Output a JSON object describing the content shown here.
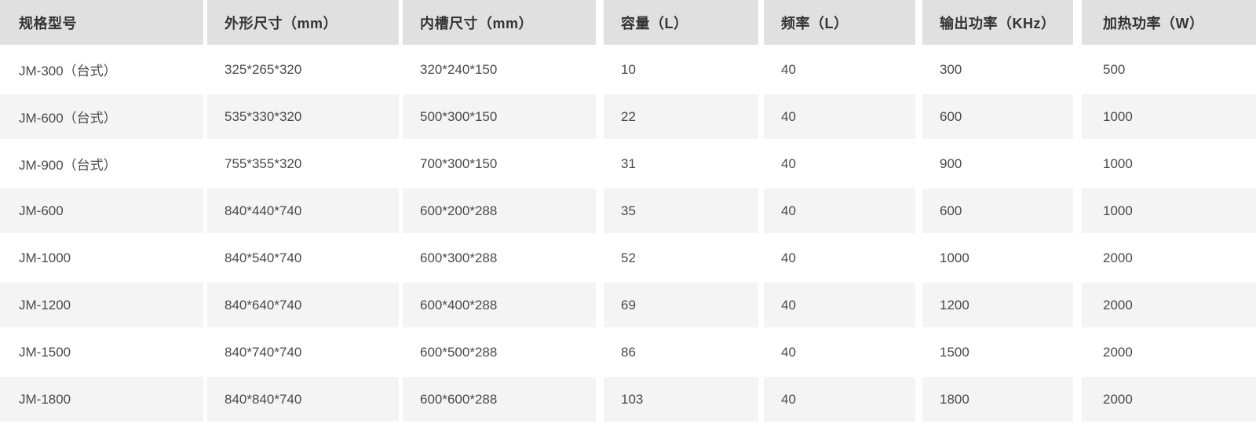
{
  "chart_data": {
    "type": "table",
    "columns": [
      "规格型号",
      "外形尺寸（mm）",
      "内槽尺寸（mm）",
      "容量（L）",
      "频率（L）",
      "输出功率（KHz）",
      "加热功率（W）"
    ],
    "rows": [
      [
        "JM-300（台式）",
        "325*265*320",
        "320*240*150",
        "10",
        "40",
        "300",
        "500"
      ],
      [
        "JM-600（台式）",
        "535*330*320",
        "500*300*150",
        "22",
        "40",
        "600",
        "1000"
      ],
      [
        "JM-900（台式）",
        "755*355*320",
        "700*300*150",
        "31",
        "40",
        "900",
        "1000"
      ],
      [
        "JM-600",
        "840*440*740",
        "600*200*288",
        "35",
        "40",
        "600",
        "1000"
      ],
      [
        "JM-1000",
        "840*540*740",
        "600*300*288",
        "52",
        "40",
        "1000",
        "2000"
      ],
      [
        "JM-1200",
        "840*640*740",
        "600*400*288",
        "69",
        "40",
        "1200",
        "2000"
      ],
      [
        "JM-1500",
        "840*740*740",
        "600*500*288",
        "86",
        "40",
        "1500",
        "2000"
      ],
      [
        "JM-1800",
        "840*840*740",
        "600*600*288",
        "103",
        "40",
        "1800",
        "2000"
      ]
    ]
  },
  "colors": {
    "header_bg": "#e0e0e0",
    "stripe_bg": "#f4f4f5",
    "header_text": "#333333",
    "cell_text": "#4a4a4a",
    "gap_color": "#ffffff"
  }
}
